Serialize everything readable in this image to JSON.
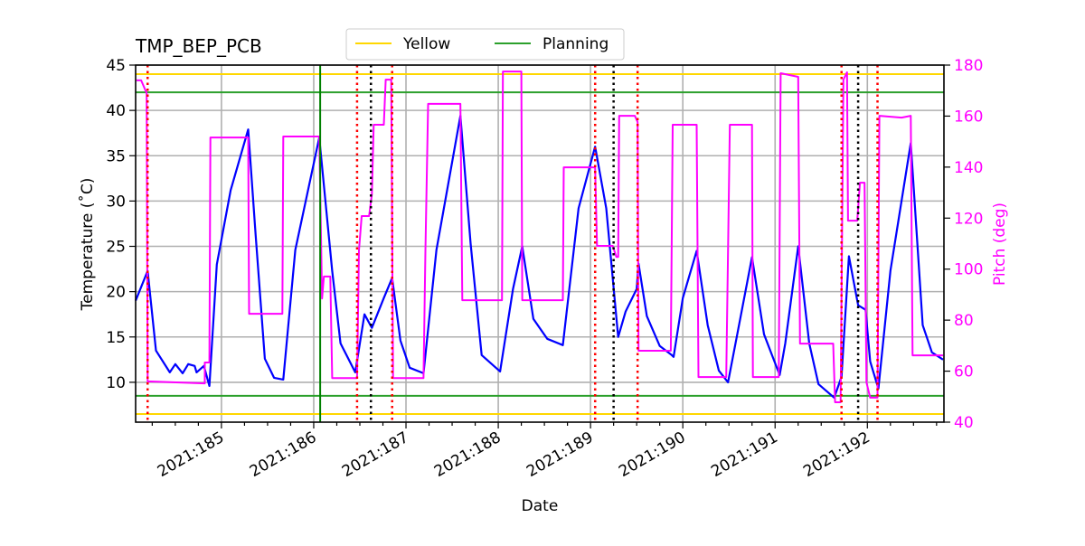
{
  "chart_data": {
    "type": "line",
    "title": "TMP_BEP_PCB",
    "xlabel": "Date",
    "ylabel": "Temperature ($^\\circ$C)",
    "ylabel_display": "Temperature (˚C)",
    "y2label": "Pitch (deg)",
    "xlim": [
      184.07,
      192.83
    ],
    "ylim": [
      5.6,
      45
    ],
    "y2lim": [
      40,
      180
    ],
    "grid": true,
    "legend_placement": "top-center",
    "x_ticks": [
      {
        "value": 185,
        "label": "2021:185"
      },
      {
        "value": 186,
        "label": "2021:186"
      },
      {
        "value": 187,
        "label": "2021:187"
      },
      {
        "value": 188,
        "label": "2021:188"
      },
      {
        "value": 189,
        "label": "2021:189"
      },
      {
        "value": 190,
        "label": "2021:190"
      },
      {
        "value": 191,
        "label": "2021:191"
      },
      {
        "value": 192,
        "label": "2021:192"
      }
    ],
    "y_ticks": [
      10,
      15,
      20,
      25,
      30,
      35,
      40,
      45
    ],
    "y2_ticks": [
      40,
      60,
      80,
      100,
      120,
      140,
      160,
      180
    ],
    "legend": [
      {
        "name": "Yellow",
        "color": "#ffd700"
      },
      {
        "name": "Planning",
        "color": "#2ca02c"
      }
    ],
    "limit_lines": [
      {
        "name": "Yellow",
        "values": [
          44,
          6.5
        ],
        "color": "#ffd700"
      },
      {
        "name": "Planning",
        "values": [
          42,
          8.5
        ],
        "color": "#2ca02c"
      }
    ],
    "vertical_lines": [
      {
        "x": 186.07,
        "color": "#008000",
        "style": "solid"
      },
      {
        "x": 184.2,
        "color": "#ff0000",
        "style": "dotted"
      },
      {
        "x": 186.47,
        "color": "#ff0000",
        "style": "dotted"
      },
      {
        "x": 186.85,
        "color": "#ff0000",
        "style": "dotted"
      },
      {
        "x": 189.05,
        "color": "#ff0000",
        "style": "dotted"
      },
      {
        "x": 189.51,
        "color": "#ff0000",
        "style": "dotted"
      },
      {
        "x": 191.72,
        "color": "#ff0000",
        "style": "dotted"
      },
      {
        "x": 192.11,
        "color": "#ff0000",
        "style": "dotted"
      },
      {
        "x": 186.62,
        "color": "#000000",
        "style": "dotted"
      },
      {
        "x": 189.25,
        "color": "#000000",
        "style": "dotted"
      },
      {
        "x": 191.9,
        "color": "#000000",
        "style": "dotted"
      }
    ],
    "series": [
      {
        "axis": "left",
        "color": "#0000ff",
        "points": [
          [
            184.07,
            19.0
          ],
          [
            184.2,
            22.3
          ],
          [
            184.29,
            13.5
          ],
          [
            184.44,
            11.1
          ],
          [
            184.5,
            12.0
          ],
          [
            184.58,
            11.0
          ],
          [
            184.64,
            12.0
          ],
          [
            184.71,
            11.8
          ],
          [
            184.73,
            11.1
          ],
          [
            184.81,
            11.8
          ],
          [
            184.87,
            9.6
          ],
          [
            184.95,
            23.0
          ],
          [
            185.1,
            31.2
          ],
          [
            185.29,
            37.9
          ],
          [
            185.37,
            26.3
          ],
          [
            185.47,
            12.6
          ],
          [
            185.57,
            10.5
          ],
          [
            185.67,
            10.3
          ],
          [
            185.8,
            24.6
          ],
          [
            186.06,
            37.0
          ],
          [
            186.2,
            22.3
          ],
          [
            186.29,
            14.3
          ],
          [
            186.45,
            11.1
          ],
          [
            186.55,
            17.5
          ],
          [
            186.63,
            16.0
          ],
          [
            186.76,
            19.3
          ],
          [
            186.85,
            21.5
          ],
          [
            186.94,
            14.6
          ],
          [
            187.04,
            11.6
          ],
          [
            187.19,
            11.0
          ],
          [
            187.33,
            24.6
          ],
          [
            187.59,
            39.4
          ],
          [
            187.7,
            25.3
          ],
          [
            187.82,
            13.0
          ],
          [
            188.02,
            11.2
          ],
          [
            188.16,
            20.3
          ],
          [
            188.26,
            25.0
          ],
          [
            188.38,
            17.0
          ],
          [
            188.53,
            14.8
          ],
          [
            188.7,
            14.1
          ],
          [
            188.87,
            29.2
          ],
          [
            189.05,
            36.0
          ],
          [
            189.17,
            29.2
          ],
          [
            189.3,
            15.0
          ],
          [
            189.38,
            17.8
          ],
          [
            189.5,
            20.3
          ],
          [
            189.52,
            23.1
          ],
          [
            189.61,
            17.3
          ],
          [
            189.75,
            14.0
          ],
          [
            189.88,
            13.0
          ],
          [
            189.9,
            12.8
          ],
          [
            190.0,
            19.3
          ],
          [
            190.15,
            24.5
          ],
          [
            190.27,
            16.3
          ],
          [
            190.39,
            11.3
          ],
          [
            190.49,
            10.0
          ],
          [
            190.59,
            15.3
          ],
          [
            190.75,
            23.8
          ],
          [
            190.88,
            15.3
          ],
          [
            191.05,
            10.8
          ],
          [
            191.11,
            14.3
          ],
          [
            191.25,
            25.0
          ],
          [
            191.37,
            14.3
          ],
          [
            191.47,
            9.8
          ],
          [
            191.64,
            8.3
          ],
          [
            191.72,
            10.6
          ],
          [
            191.8,
            23.9
          ],
          [
            191.9,
            18.5
          ],
          [
            191.98,
            18.0
          ],
          [
            192.03,
            12.3
          ],
          [
            192.12,
            9.3
          ],
          [
            192.25,
            22.3
          ],
          [
            192.47,
            36.4
          ],
          [
            192.6,
            16.3
          ],
          [
            192.7,
            13.3
          ],
          [
            192.82,
            12.5
          ]
        ]
      },
      {
        "axis": "right",
        "color": "#ff00ff",
        "points": [
          [
            184.08,
            174.0
          ],
          [
            184.13,
            174.0
          ],
          [
            184.19,
            169.0
          ],
          [
            184.2,
            56.0
          ],
          [
            184.82,
            55.2
          ],
          [
            184.82,
            63.4
          ],
          [
            184.87,
            63.4
          ],
          [
            184.88,
            151.6
          ],
          [
            185.29,
            151.6
          ],
          [
            185.3,
            82.5
          ],
          [
            185.66,
            82.5
          ],
          [
            185.67,
            152.0
          ],
          [
            186.06,
            152.0
          ],
          [
            186.09,
            88.5
          ],
          [
            186.11,
            97.1
          ],
          [
            186.18,
            97.1
          ],
          [
            186.2,
            57.3
          ],
          [
            186.47,
            57.3
          ],
          [
            186.49,
            107.3
          ],
          [
            186.52,
            120.8
          ],
          [
            186.6,
            120.8
          ],
          [
            186.63,
            129.3
          ],
          [
            186.65,
            156.6
          ],
          [
            186.76,
            156.6
          ],
          [
            186.78,
            174.3
          ],
          [
            186.84,
            174.3
          ],
          [
            186.86,
            57.3
          ],
          [
            187.19,
            57.3
          ],
          [
            187.21,
            107.0
          ],
          [
            187.24,
            164.8
          ],
          [
            187.59,
            164.8
          ],
          [
            187.61,
            87.8
          ],
          [
            188.04,
            87.8
          ],
          [
            188.05,
            177.5
          ],
          [
            188.25,
            177.5
          ],
          [
            188.26,
            87.8
          ],
          [
            188.7,
            87.8
          ],
          [
            188.71,
            139.9
          ],
          [
            189.05,
            139.9
          ],
          [
            189.07,
            109.1
          ],
          [
            189.24,
            109.1
          ],
          [
            189.28,
            104.8
          ],
          [
            189.3,
            104.8
          ],
          [
            189.31,
            160.1
          ],
          [
            189.48,
            160.1
          ],
          [
            189.51,
            157.7
          ],
          [
            189.52,
            68.0
          ],
          [
            189.87,
            68.0
          ],
          [
            189.89,
            156.6
          ],
          [
            190.15,
            156.6
          ],
          [
            190.17,
            57.7
          ],
          [
            190.47,
            57.7
          ],
          [
            190.51,
            156.6
          ],
          [
            190.75,
            156.6
          ],
          [
            190.76,
            57.7
          ],
          [
            191.04,
            57.7
          ],
          [
            191.06,
            176.8
          ],
          [
            191.25,
            175.4
          ],
          [
            191.27,
            70.8
          ],
          [
            191.63,
            70.8
          ],
          [
            191.65,
            47.8
          ],
          [
            191.71,
            47.8
          ],
          [
            191.74,
            174.3
          ],
          [
            191.78,
            177.2
          ],
          [
            191.79,
            119.0
          ],
          [
            191.89,
            119.0
          ],
          [
            191.92,
            133.9
          ],
          [
            191.97,
            133.9
          ],
          [
            191.99,
            55.6
          ],
          [
            192.03,
            49.6
          ],
          [
            192.11,
            49.6
          ],
          [
            192.13,
            160.1
          ],
          [
            192.37,
            159.4
          ],
          [
            192.47,
            160.1
          ],
          [
            192.49,
            66.2
          ],
          [
            192.82,
            66.2
          ]
        ]
      }
    ]
  }
}
